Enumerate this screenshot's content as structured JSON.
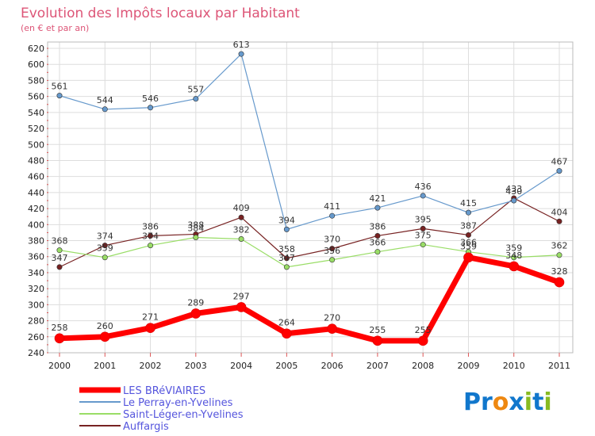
{
  "chart_data": {
    "type": "line",
    "title": "Evolution des Impôts locaux par Habitant",
    "subtitle": "(en € et par an)",
    "xlabel": "",
    "ylabel": "",
    "ylim": [
      240,
      620
    ],
    "ytick_step": 20,
    "grid": true,
    "legend_position": "bottom-left",
    "categories": [
      "2000",
      "2001",
      "2002",
      "2003",
      "2004",
      "2005",
      "2006",
      "2007",
      "2008",
      "2009",
      "2010",
      "2011"
    ],
    "series": [
      {
        "name": "LES BRéVIAIRES",
        "color": "#ff0000",
        "values": [
          258,
          260,
          271,
          289,
          297,
          264,
          270,
          255,
          255,
          359,
          348,
          328
        ]
      },
      {
        "name": "Le Perray-en-Yvelines",
        "color": "#6699cc",
        "values": [
          561,
          544,
          546,
          557,
          613,
          394,
          411,
          421,
          436,
          415,
          430,
          467
        ]
      },
      {
        "name": "Saint-Léger-en-Yvelines",
        "color": "#99dd66",
        "values": [
          368,
          359,
          374,
          384,
          382,
          347,
          356,
          366,
          375,
          366,
          359,
          362
        ]
      },
      {
        "name": "Auffargis",
        "color": "#772222",
        "values": [
          347,
          374,
          386,
          388,
          409,
          358,
          370,
          386,
          395,
          387,
          433,
          404
        ]
      }
    ]
  },
  "brand": {
    "p1": "Pr",
    "o": "o",
    "x": "x",
    "i1": "i",
    "t": "t",
    "i2": "i"
  }
}
